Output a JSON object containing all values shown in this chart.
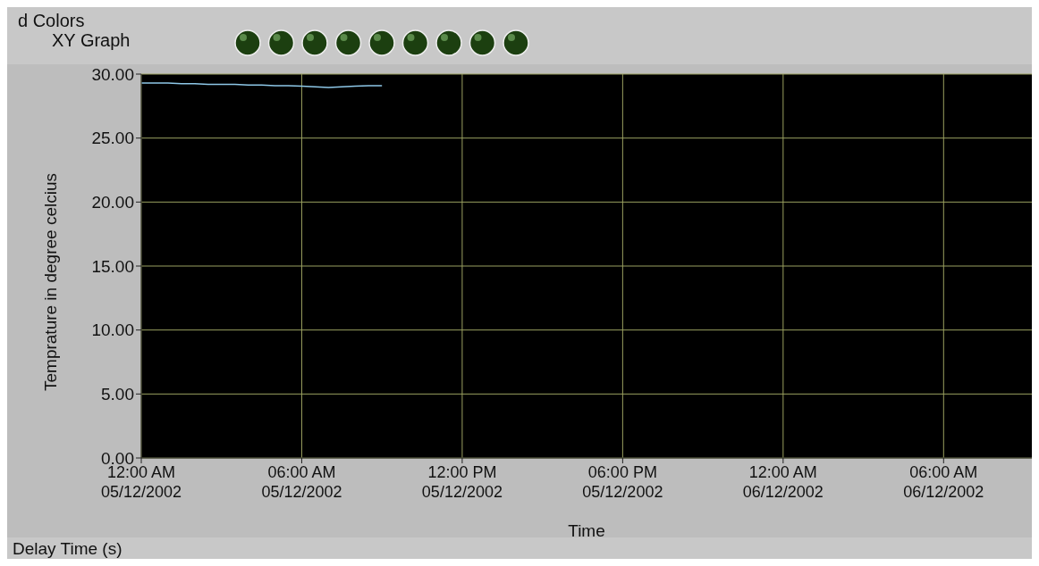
{
  "chart_data": {
    "type": "line",
    "title": "XY Graph",
    "xlabel": "Time",
    "ylabel": "Temprature in degree celcius",
    "annotations": [
      "d Colors",
      "Delay Time (s)"
    ],
    "x": [
      "2002-12-05T00:00",
      "2002-12-05T00:30",
      "2002-12-05T01:00",
      "2002-12-05T01:30",
      "2002-12-05T02:00",
      "2002-12-05T02:30",
      "2002-12-05T03:00",
      "2002-12-05T03:30",
      "2002-12-05T04:00",
      "2002-12-05T04:30",
      "2002-12-05T05:00",
      "2002-12-05T05:30",
      "2002-12-05T06:00",
      "2002-12-05T06:30",
      "2002-12-05T07:00",
      "2002-12-05T07:30",
      "2002-12-05T08:00",
      "2002-12-05T08:30",
      "2002-12-05T09:00"
    ],
    "series": [
      {
        "color": "#8ec8e8",
        "values": [
          29.3,
          29.3,
          29.3,
          29.25,
          29.25,
          29.2,
          29.2,
          29.2,
          29.15,
          29.15,
          29.1,
          29.1,
          29.05,
          29.0,
          28.95,
          29.0,
          29.05,
          29.1,
          29.1
        ]
      }
    ],
    "xlim": [
      "2002-12-05T00:00",
      "2002-12-06T09:18"
    ],
    "xticks": [
      {
        "value": "2002-12-05T00:00",
        "label": "12:00 AM\n05/12/2002"
      },
      {
        "value": "2002-12-05T06:00",
        "label": "06:00 AM\n05/12/2002"
      },
      {
        "value": "2002-12-05T12:00",
        "label": "12:00 PM\n05/12/2002"
      },
      {
        "value": "2002-12-05T18:00",
        "label": "06:00 PM\n05/12/2002"
      },
      {
        "value": "2002-12-06T00:00",
        "label": "12:00 AM\n06/12/2002"
      },
      {
        "value": "2002-12-06T06:00",
        "label": "06:00 AM\n06/12/2002"
      }
    ],
    "ylim": [
      0,
      30
    ],
    "yticks": [
      {
        "value": 0,
        "label": "0.00"
      },
      {
        "value": 5,
        "label": "5.00"
      },
      {
        "value": 10,
        "label": "10.00"
      },
      {
        "value": 15,
        "label": "15.00"
      },
      {
        "value": 20,
        "label": "20.00"
      },
      {
        "value": 25,
        "label": "25.00"
      },
      {
        "value": 30,
        "label": "30.00"
      }
    ],
    "grid": true,
    "legend": false,
    "marker": "none",
    "line_style": "solid"
  }
}
